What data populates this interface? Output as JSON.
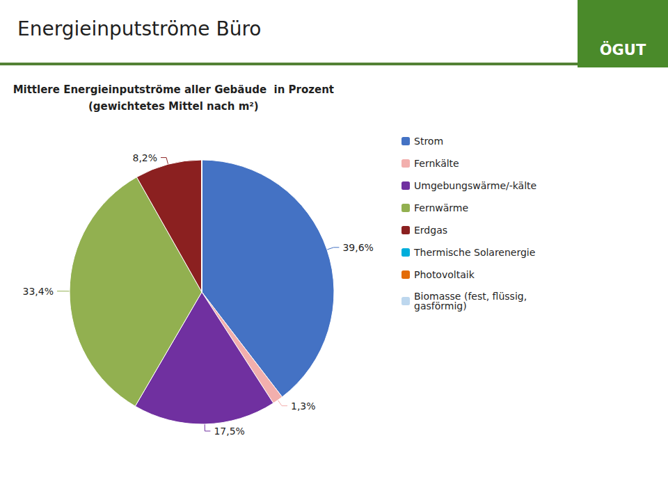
{
  "chart_data": {
    "type": "pie",
    "title": "Energieinputströme Büro",
    "subtitle": "Mittlere Energieinputströme aller Gebäude  in Prozent\n(gewichtetes Mittel nach m²)",
    "annotations": [
      "ÖGUT"
    ],
    "categories": [
      "Strom",
      "Fernkälte",
      "Umgebungswärme/-kälte",
      "Fernwärme",
      "Erdgas",
      "Thermische Solarenergie",
      "Photovoltaik",
      "Biomasse (fest, flüssig,\ngasförmig)"
    ],
    "values": [
      39.6,
      1.3,
      17.5,
      33.4,
      8.2,
      0.0,
      0.0,
      0.0
    ],
    "value_labels": [
      "39,6%",
      "1,3%",
      "17,5%",
      "33,4%",
      "8,2%",
      null,
      null,
      null
    ],
    "colors": [
      "#4472C4",
      "#F2AFAD",
      "#7030A0",
      "#92B050",
      "#8B2020",
      "#00AEDB",
      "#E36C09",
      "#BDD7EE"
    ],
    "data_labels": true,
    "legend": "right"
  }
}
